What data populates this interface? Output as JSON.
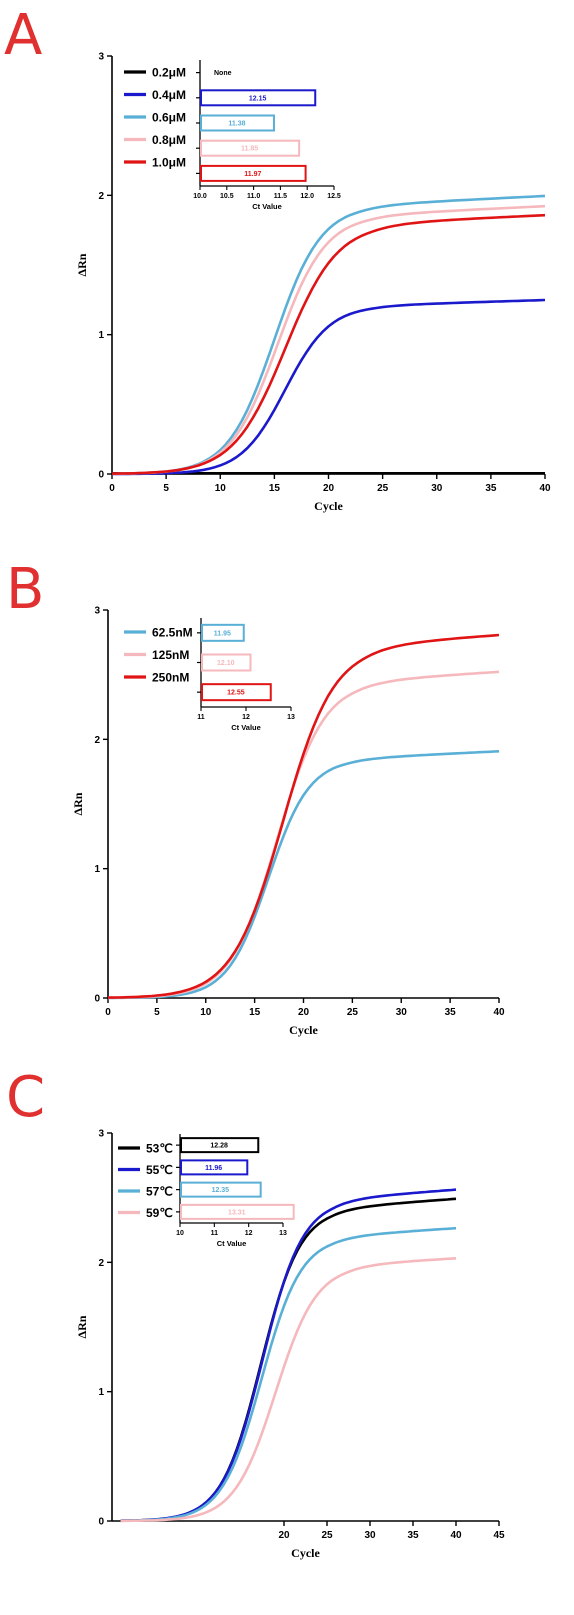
{
  "chart_data": [
    {
      "panel": "A",
      "type": "line",
      "xlabel": "Cycle",
      "ylabel": "ΔRn",
      "xlim": [
        0,
        40
      ],
      "ylim": [
        0,
        3
      ],
      "x_ticks": [
        "0",
        "5",
        "10",
        "15",
        "20",
        "25",
        "30",
        "35",
        "40"
      ],
      "y_ticks": [
        "0",
        "1",
        "2",
        "3"
      ],
      "series": [
        {
          "name": "0.2μM",
          "color": "#000000",
          "plateau": 0.0,
          "midpoint": 20,
          "slope": 1.0
        },
        {
          "name": "0.4μM",
          "color": "#1a1acc",
          "plateau": 1.21,
          "midpoint": 16.0,
          "slope": 2.05
        },
        {
          "name": "0.6μM",
          "color": "#5aafd6",
          "plateau": 1.93,
          "midpoint": 15.0,
          "slope": 2.15
        },
        {
          "name": "0.8μM",
          "color": "#f5b8bc",
          "plateau": 1.86,
          "midpoint": 15.3,
          "slope": 2.2
        },
        {
          "name": "1.0μM",
          "color": "#e01414",
          "plateau": 1.8,
          "midpoint": 16.0,
          "slope": 2.4
        }
      ],
      "inset": {
        "type": "bar",
        "xlabel": "Ct Value",
        "xlim": [
          10.0,
          12.5
        ],
        "x_ticks": [
          "10.0",
          "10.5",
          "11.0",
          "11.5",
          "12.0",
          "12.5"
        ],
        "bars": [
          {
            "category": "0.2μM",
            "value": null,
            "label": "None",
            "color": "#000000"
          },
          {
            "category": "0.4μM",
            "value": 12.15,
            "label": "12.15",
            "color": "#1a1acc"
          },
          {
            "category": "0.6μM",
            "value": 11.38,
            "label": "11.38",
            "color": "#5aafd6"
          },
          {
            "category": "0.8μM",
            "value": 11.85,
            "label": "11.85",
            "color": "#f5b8bc"
          },
          {
            "category": "1.0μM",
            "value": 11.97,
            "label": "11.97",
            "color": "#e01414"
          }
        ]
      }
    },
    {
      "panel": "B",
      "type": "line",
      "xlabel": "Cycle",
      "ylabel": "ΔRn",
      "xlim": [
        0,
        40
      ],
      "ylim": [
        0,
        3
      ],
      "x_ticks": [
        "0",
        "5",
        "10",
        "15",
        "20",
        "25",
        "30",
        "35",
        "40"
      ],
      "y_ticks": [
        "0",
        "1",
        "2",
        "3"
      ],
      "series": [
        {
          "name": "62.5nM",
          "color": "#5aafd6",
          "plateau": 1.85,
          "midpoint": 16.4,
          "slope": 2.1
        },
        {
          "name": "125nM",
          "color": "#f5b8bc",
          "plateau": 2.45,
          "midpoint": 17.3,
          "slope": 2.4
        },
        {
          "name": "250nM",
          "color": "#e01414",
          "plateau": 2.73,
          "midpoint": 17.9,
          "slope": 2.6
        }
      ],
      "inset": {
        "type": "bar",
        "xlabel": "Ct Value",
        "xlim": [
          11,
          13
        ],
        "x_ticks": [
          "11",
          "12",
          "13"
        ],
        "bars": [
          {
            "category": "62.5nM",
            "value": 11.95,
            "label": "11.95",
            "color": "#5aafd6"
          },
          {
            "category": "125nM",
            "value": 12.1,
            "label": "12.10",
            "color": "#f5b8bc"
          },
          {
            "category": "250nM",
            "value": 12.55,
            "label": "12.55",
            "color": "#e01414"
          }
        ]
      }
    },
    {
      "panel": "C",
      "type": "line",
      "xlabel": "Cycle",
      "ylabel": "ΔRn",
      "xlim": [
        0,
        45
      ],
      "ylim": [
        0,
        3
      ],
      "x_ticks": [
        "20",
        "25",
        "30",
        "35",
        "40",
        "45"
      ],
      "y_ticks": [
        "0",
        "1",
        "2",
        "3"
      ],
      "series": [
        {
          "name": "53℃",
          "color": "#000000",
          "plateau": 2.42,
          "midpoint": 17.3,
          "slope": 2.3
        },
        {
          "name": "55℃",
          "color": "#1a1acc",
          "plateau": 2.49,
          "midpoint": 17.5,
          "slope": 2.35
        },
        {
          "name": "57℃",
          "color": "#5aafd6",
          "plateau": 2.2,
          "midpoint": 17.4,
          "slope": 2.3
        },
        {
          "name": "59℃",
          "color": "#f5b8bc",
          "plateau": 1.98,
          "midpoint": 19.0,
          "slope": 2.4
        }
      ],
      "inset": {
        "type": "bar",
        "xlabel": "Ct Value",
        "xlim": [
          10,
          13
        ],
        "x_ticks": [
          "10",
          "11",
          "12",
          "13"
        ],
        "bars": [
          {
            "category": "53℃",
            "value": 12.28,
            "label": "12.28",
            "color": "#000000"
          },
          {
            "category": "55℃",
            "value": 11.96,
            "label": "11.96",
            "color": "#1a1acc"
          },
          {
            "category": "57℃",
            "value": 12.35,
            "label": "12.35",
            "color": "#5aafd6"
          },
          {
            "category": "59℃",
            "value": 13.31,
            "label": "13.31",
            "color": "#f5b8bc"
          }
        ]
      }
    }
  ]
}
